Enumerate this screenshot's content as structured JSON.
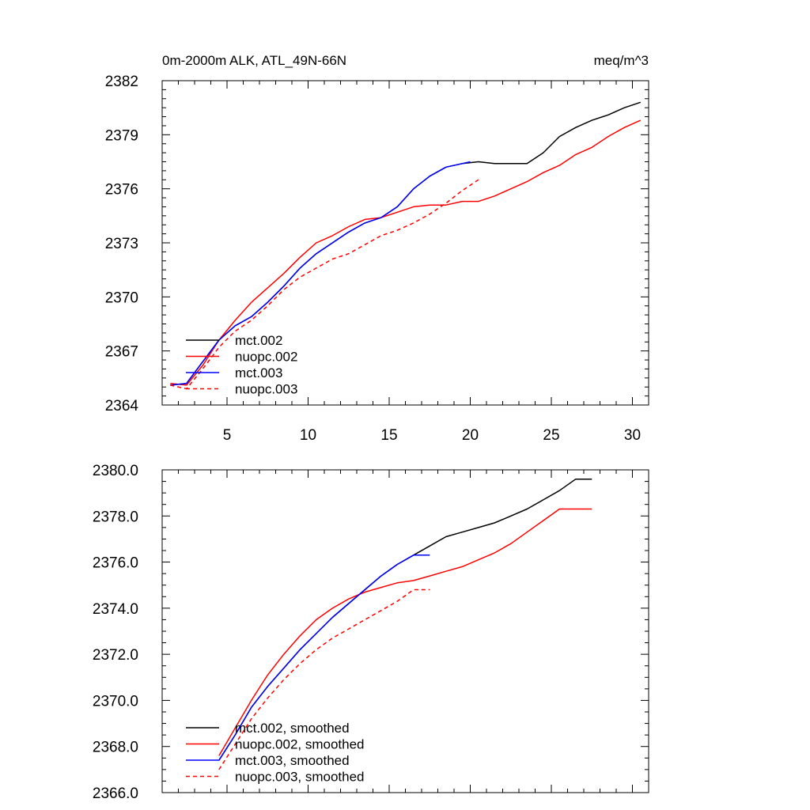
{
  "chart_data": [
    {
      "type": "line",
      "title": "0m-2000m ALK, ATL_49N-66N",
      "units": "meq/m^3",
      "xlim": [
        1,
        31
      ],
      "ylim": [
        2364,
        2382
      ],
      "xticks": [
        5,
        10,
        15,
        20,
        25,
        30
      ],
      "yticks": [
        2364,
        2367,
        2370,
        2373,
        2376,
        2379,
        2382
      ],
      "ytick_labels": [
        "2364",
        "2367",
        "2370",
        "2373",
        "2376",
        "2379",
        "2382"
      ],
      "legend_position": "bottom-left",
      "series": [
        {
          "name": "mct.002",
          "color": "#000000",
          "dash": "solid",
          "x": [
            1.5,
            2.5,
            3.5,
            4.5,
            5.5,
            6.5,
            7.5,
            8.5,
            9.5,
            10.5,
            11.5,
            12.5,
            13.5,
            14.5,
            15.5,
            16.5,
            17.5,
            18.5,
            19.5,
            20.5,
            21.5,
            22.5,
            23.5,
            24.5,
            25.5,
            26.5,
            27.5,
            28.5,
            29.5,
            30.5
          ],
          "y": [
            2365.1,
            2365.2,
            2366.4,
            2367.6,
            2368.4,
            2368.9,
            2369.7,
            2370.6,
            2371.6,
            2372.4,
            2373.0,
            2373.6,
            2374.1,
            2374.4,
            2375.0,
            2376.0,
            2376.7,
            2377.2,
            2377.4,
            2377.5,
            2377.4,
            2377.4,
            2377.4,
            2378.0,
            2378.9,
            2379.4,
            2379.8,
            2380.1,
            2380.5,
            2380.8
          ]
        },
        {
          "name": "nuopc.002",
          "color": "#ff0000",
          "dash": "solid",
          "x": [
            1.5,
            2.5,
            3.5,
            4.5,
            5.5,
            6.5,
            7.5,
            8.5,
            9.5,
            10.5,
            11.5,
            12.5,
            13.5,
            14.5,
            15.5,
            16.5,
            17.5,
            18.5,
            19.5,
            20.5,
            21.5,
            22.5,
            23.5,
            24.5,
            25.5,
            26.5,
            27.5,
            28.5,
            29.5,
            30.5
          ],
          "y": [
            2365.2,
            2365.1,
            2366.2,
            2367.6,
            2368.7,
            2369.7,
            2370.5,
            2371.3,
            2372.2,
            2373.0,
            2373.4,
            2373.9,
            2374.3,
            2374.4,
            2374.7,
            2375.0,
            2375.1,
            2375.1,
            2375.3,
            2375.3,
            2375.6,
            2376.0,
            2376.4,
            2376.9,
            2377.3,
            2377.9,
            2378.3,
            2378.9,
            2379.4,
            2379.8
          ]
        },
        {
          "name": "mct.003",
          "color": "#0000ff",
          "dash": "solid",
          "x": [
            1.5,
            2.5,
            3.5,
            4.5,
            5.5,
            6.5,
            7.5,
            8.5,
            9.5,
            10.5,
            11.5,
            12.5,
            13.5,
            14.5,
            15.5,
            16.5,
            17.5,
            18.5,
            19.5,
            20.0
          ],
          "y": [
            2365.1,
            2365.2,
            2366.4,
            2367.6,
            2368.4,
            2368.9,
            2369.7,
            2370.6,
            2371.6,
            2372.4,
            2373.0,
            2373.6,
            2374.1,
            2374.4,
            2375.0,
            2376.0,
            2376.7,
            2377.2,
            2377.4,
            2377.5
          ]
        },
        {
          "name": "nuopc.003",
          "color": "#ff0000",
          "dash": "dashed",
          "x": [
            1.5,
            2.5,
            3.5,
            4.5,
            5.5,
            6.5,
            7.5,
            8.5,
            9.5,
            10.5,
            11.5,
            12.5,
            13.5,
            14.5,
            15.5,
            16.5,
            17.5,
            18.5,
            19.5,
            20.5
          ],
          "y": [
            2365.1,
            2364.9,
            2366.0,
            2367.2,
            2368.1,
            2368.7,
            2369.5,
            2370.4,
            2371.1,
            2371.6,
            2372.1,
            2372.4,
            2372.9,
            2373.4,
            2373.7,
            2374.1,
            2374.6,
            2375.2,
            2375.9,
            2376.5
          ]
        }
      ]
    },
    {
      "type": "line",
      "title": "",
      "xlim": [
        1,
        31
      ],
      "ylim": [
        2366,
        2380
      ],
      "xticks": [
        5,
        10,
        15,
        20,
        25,
        30
      ],
      "yticks": [
        2366,
        2368,
        2370,
        2372,
        2374,
        2376,
        2378,
        2380
      ],
      "ytick_labels": [
        "2366.0",
        "2368.0",
        "2370.0",
        "2372.0",
        "2374.0",
        "2376.0",
        "2378.0",
        "2380.0"
      ],
      "legend_position": "bottom-left",
      "series": [
        {
          "name": "mct.002, smoothed",
          "color": "#000000",
          "dash": "solid",
          "x": [
            4.5,
            5.5,
            6.5,
            7.5,
            8.5,
            9.5,
            10.5,
            11.5,
            12.5,
            13.5,
            14.5,
            15.5,
            16.5,
            17.5,
            18.5,
            19.5,
            20.5,
            21.5,
            22.5,
            23.5,
            24.5,
            25.5,
            26.5,
            27.5
          ],
          "y": [
            2367.4,
            2368.5,
            2369.7,
            2370.6,
            2371.4,
            2372.2,
            2372.9,
            2373.6,
            2374.2,
            2374.8,
            2375.4,
            2375.9,
            2376.3,
            2376.7,
            2377.1,
            2377.3,
            2377.5,
            2377.7,
            2378.0,
            2378.3,
            2378.7,
            2379.1,
            2379.6,
            2379.6
          ]
        },
        {
          "name": "nuopc.002, smoothed",
          "color": "#ff0000",
          "dash": "solid",
          "x": [
            4.5,
            5.5,
            6.5,
            7.5,
            8.5,
            9.5,
            10.5,
            11.5,
            12.5,
            13.5,
            14.5,
            15.5,
            16.5,
            17.5,
            18.5,
            19.5,
            20.5,
            21.5,
            22.5,
            23.5,
            24.5,
            25.5,
            26.5,
            27.5
          ],
          "y": [
            2367.6,
            2368.8,
            2370.0,
            2371.1,
            2372.0,
            2372.8,
            2373.5,
            2374.0,
            2374.4,
            2374.7,
            2374.9,
            2375.1,
            2375.2,
            2375.4,
            2375.6,
            2375.8,
            2376.1,
            2376.4,
            2376.8,
            2377.3,
            2377.8,
            2378.3,
            2378.3,
            2378.3
          ]
        },
        {
          "name": "mct.003, smoothed",
          "color": "#0000ff",
          "dash": "solid",
          "x": [
            4.5,
            5.5,
            6.5,
            7.5,
            8.5,
            9.5,
            10.5,
            11.5,
            12.5,
            13.5,
            14.5,
            15.5,
            16.5,
            17.5
          ],
          "y": [
            2367.4,
            2368.5,
            2369.7,
            2370.6,
            2371.4,
            2372.2,
            2372.9,
            2373.6,
            2374.2,
            2374.8,
            2375.4,
            2375.9,
            2376.3,
            2376.3
          ]
        },
        {
          "name": "nuopc.003, smoothed",
          "color": "#ff0000",
          "dash": "dashed",
          "x": [
            4.5,
            5.5,
            6.5,
            7.5,
            8.5,
            9.5,
            10.5,
            11.5,
            12.5,
            13.5,
            14.5,
            15.5,
            16.5,
            17.5
          ],
          "y": [
            2367.0,
            2368.1,
            2369.2,
            2370.1,
            2370.9,
            2371.6,
            2372.2,
            2372.7,
            2373.1,
            2373.5,
            2373.9,
            2374.3,
            2374.8,
            2374.8
          ]
        }
      ]
    }
  ]
}
